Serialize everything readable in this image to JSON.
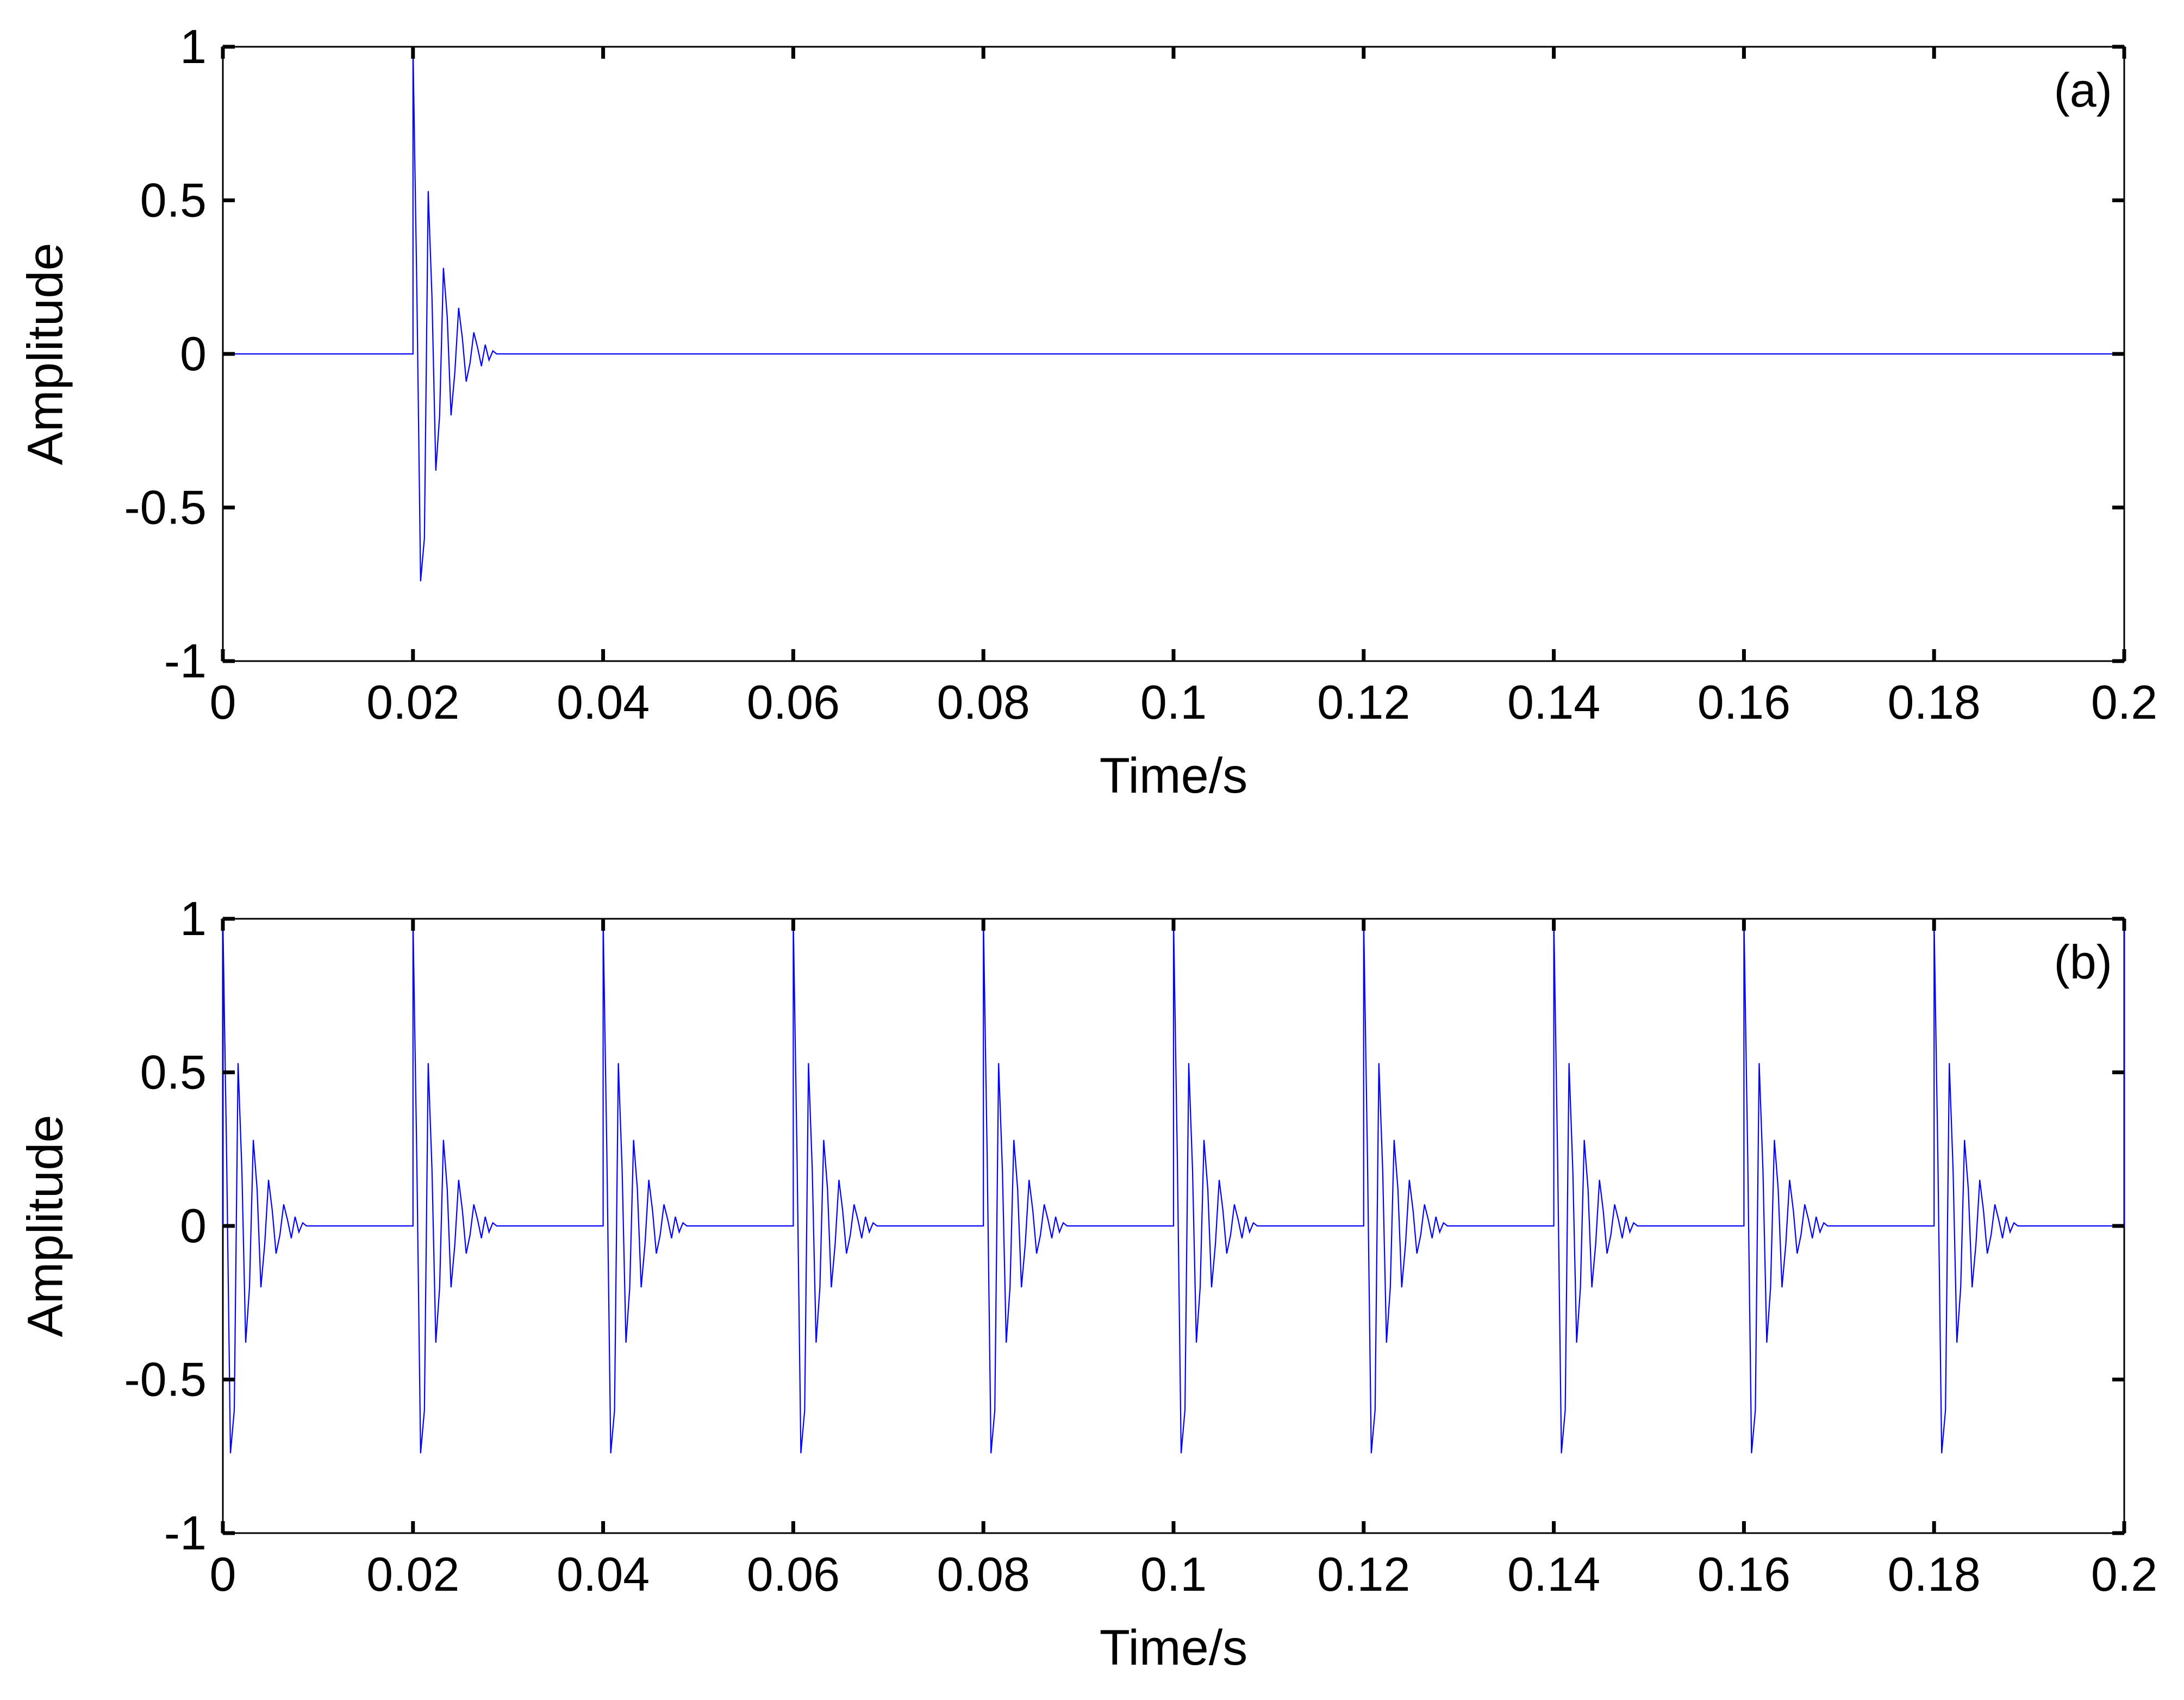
{
  "colors": {
    "series": "#0000ff",
    "axes": "#000000",
    "background": "#ffffff"
  },
  "chart_data": [
    {
      "type": "line",
      "panel_label": "(a)",
      "xlabel": "Time/s",
      "ylabel": "Amplitude",
      "xlim": [
        0,
        0.2
      ],
      "ylim": [
        -1,
        1
      ],
      "xticks": [
        0,
        0.02,
        0.04,
        0.06,
        0.08,
        0.1,
        0.12,
        0.14,
        0.16,
        0.18,
        0.2
      ],
      "xtick_labels": [
        "0",
        "0.02",
        "0.04",
        "0.06",
        "0.08",
        "0.1",
        "0.12",
        "0.14",
        "0.16",
        "0.18",
        "0.2"
      ],
      "yticks": [
        -1,
        -0.5,
        0,
        0.5,
        1
      ],
      "ytick_labels": [
        "-1",
        "-0.5",
        "0",
        "0.5",
        "1"
      ],
      "grid": false,
      "legend": "none",
      "series": [
        {
          "color": "#0000ff",
          "impulse_times": [
            0.02
          ],
          "response": {
            "t": [
              0,
              0.0004,
              0.0008,
              0.0012,
              0.0016,
              0.002,
              0.0024,
              0.0028,
              0.0032,
              0.0036,
              0.004,
              0.0044,
              0.0048,
              0.0052,
              0.0056,
              0.006,
              0.0064,
              0.0068,
              0.0072,
              0.0076,
              0.008,
              0.0084,
              0.0088,
              0.0092,
              0.0096,
              0.01
            ],
            "amplitude": [
              1.0,
              0.22,
              -0.74,
              -0.6,
              0.53,
              0.18,
              -0.38,
              -0.2,
              0.28,
              0.12,
              -0.2,
              -0.06,
              0.15,
              0.05,
              -0.09,
              -0.03,
              0.07,
              0.02,
              -0.04,
              0.03,
              -0.02,
              0.01,
              0.0,
              0.0,
              0.0,
              0.0
            ]
          }
        }
      ]
    },
    {
      "type": "line",
      "panel_label": "(b)",
      "xlabel": "Time/s",
      "ylabel": "Amplitude",
      "xlim": [
        0,
        0.2
      ],
      "ylim": [
        -1,
        1
      ],
      "xticks": [
        0,
        0.02,
        0.04,
        0.06,
        0.08,
        0.1,
        0.12,
        0.14,
        0.16,
        0.18,
        0.2
      ],
      "xtick_labels": [
        "0",
        "0.02",
        "0.04",
        "0.06",
        "0.08",
        "0.1",
        "0.12",
        "0.14",
        "0.16",
        "0.18",
        "0.2"
      ],
      "yticks": [
        -1,
        -0.5,
        0,
        0.5,
        1
      ],
      "ytick_labels": [
        "-1",
        "-0.5",
        "0",
        "0.5",
        "1"
      ],
      "grid": false,
      "legend": "none",
      "series": [
        {
          "color": "#0000ff",
          "impulse_times": [
            0,
            0.02,
            0.04,
            0.06,
            0.08,
            0.1,
            0.12,
            0.14,
            0.16,
            0.18,
            0.2
          ],
          "response": {
            "t": [
              0,
              0.0004,
              0.0008,
              0.0012,
              0.0016,
              0.002,
              0.0024,
              0.0028,
              0.0032,
              0.0036,
              0.004,
              0.0044,
              0.0048,
              0.0052,
              0.0056,
              0.006,
              0.0064,
              0.0068,
              0.0072,
              0.0076,
              0.008,
              0.0084,
              0.0088,
              0.0092,
              0.0096,
              0.01
            ],
            "amplitude": [
              1.0,
              0.22,
              -0.74,
              -0.6,
              0.53,
              0.18,
              -0.38,
              -0.2,
              0.28,
              0.12,
              -0.2,
              -0.06,
              0.15,
              0.05,
              -0.09,
              -0.03,
              0.07,
              0.02,
              -0.04,
              0.03,
              -0.02,
              0.01,
              0.0,
              0.0,
              0.0,
              0.0
            ]
          }
        }
      ]
    }
  ]
}
